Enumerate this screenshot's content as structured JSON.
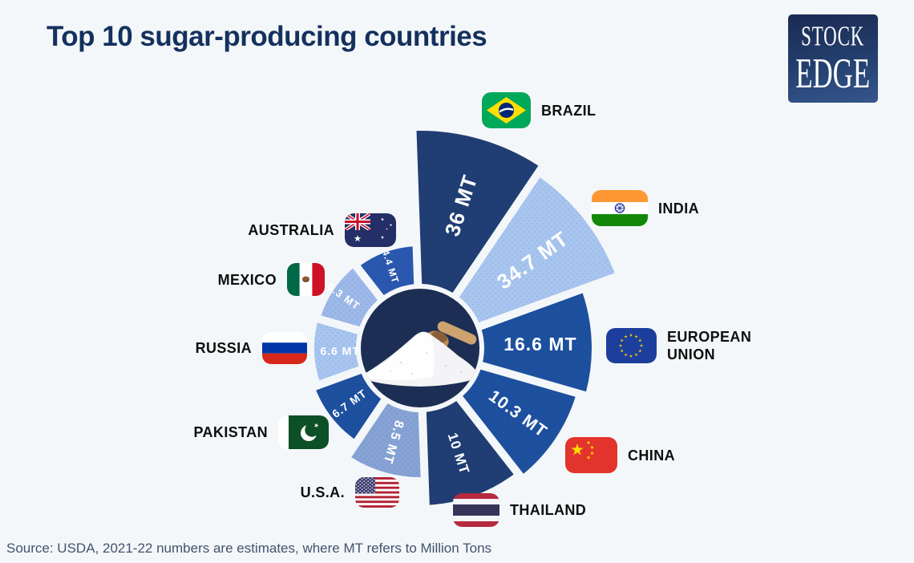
{
  "header": {
    "title": "Top 10 sugar-producing countries",
    "logo_line1": "STOCK",
    "logo_line2": "EDGE"
  },
  "footer": {
    "source": "Source: USDA, 2021-22 numbers are estimates, where MT refers to Million Tons"
  },
  "chart_data": {
    "type": "pie",
    "variant": "radial-rose-infographic",
    "title": "Top 10 sugar-producing countries",
    "unit": "MT",
    "unit_meaning": "Million Tons",
    "categories": [
      "Brazil",
      "India",
      "European Union",
      "China",
      "Thailand",
      "U.S.A.",
      "Pakistan",
      "Russia",
      "Mexico",
      "Australia"
    ],
    "values": [
      36,
      34.7,
      16.6,
      10.3,
      10,
      8.5,
      6.7,
      6.6,
      6.3,
      4.4
    ],
    "value_labels": [
      "36 MT",
      "34.7 MT",
      "16.6 MT",
      "10.3 MT",
      "10 MT",
      "8.5 MT",
      "6.7 MT",
      "6.6 MT",
      "6.3 MT",
      "4.4 MT"
    ],
    "name_lines": [
      [
        "BRAZIL"
      ],
      [
        "INDIA"
      ],
      [
        "EUROPEAN",
        "UNION"
      ],
      [
        "CHINA"
      ],
      [
        "THAILAND"
      ],
      [
        "U.S.A."
      ],
      [
        "PAKISTAN"
      ],
      [
        "RUSSIA"
      ],
      [
        "MEXICO"
      ],
      [
        "AUSTRALIA"
      ]
    ],
    "slice_colors": [
      "#203e74",
      "#a8c5f0",
      "#1d509f",
      "#1d509f",
      "#203e74",
      "#87a3d5",
      "#1d509f",
      "#a8c5f0",
      "#9db9e9",
      "#2a58b0"
    ],
    "colors": {
      "background": "#f4f7f9",
      "title_navy": "#14315e",
      "center_circle": "#1c2e53",
      "value_label_text": "#ffffff",
      "country_label_text": "#0e0e0e",
      "source_text": "#41536f",
      "logo_navy": "#1a2a52"
    },
    "legend_position": "around-chart-with-flags",
    "grid": false
  }
}
